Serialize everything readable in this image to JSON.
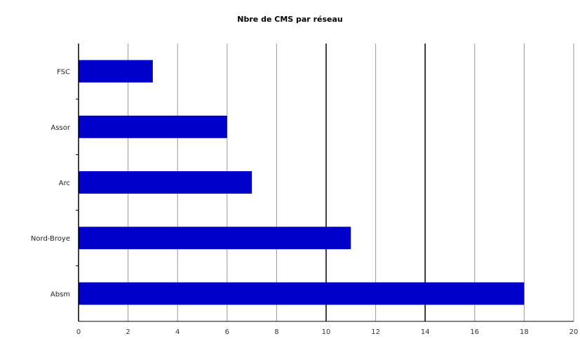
{
  "chart_data": {
    "type": "bar",
    "orientation": "horizontal",
    "title": "Nbre de CMS par réseau",
    "xlabel": "",
    "ylabel": "",
    "xlim": [
      0,
      20
    ],
    "xticks": [
      0,
      2,
      4,
      6,
      8,
      10,
      12,
      14,
      16,
      18,
      20
    ],
    "grid": true,
    "legend": "none",
    "bar_color": "#0000cc",
    "categories": [
      "FSC",
      "Assor",
      "Arc",
      "Nord-Broye",
      "Absm"
    ],
    "values": [
      3,
      6,
      7,
      11,
      18
    ]
  }
}
